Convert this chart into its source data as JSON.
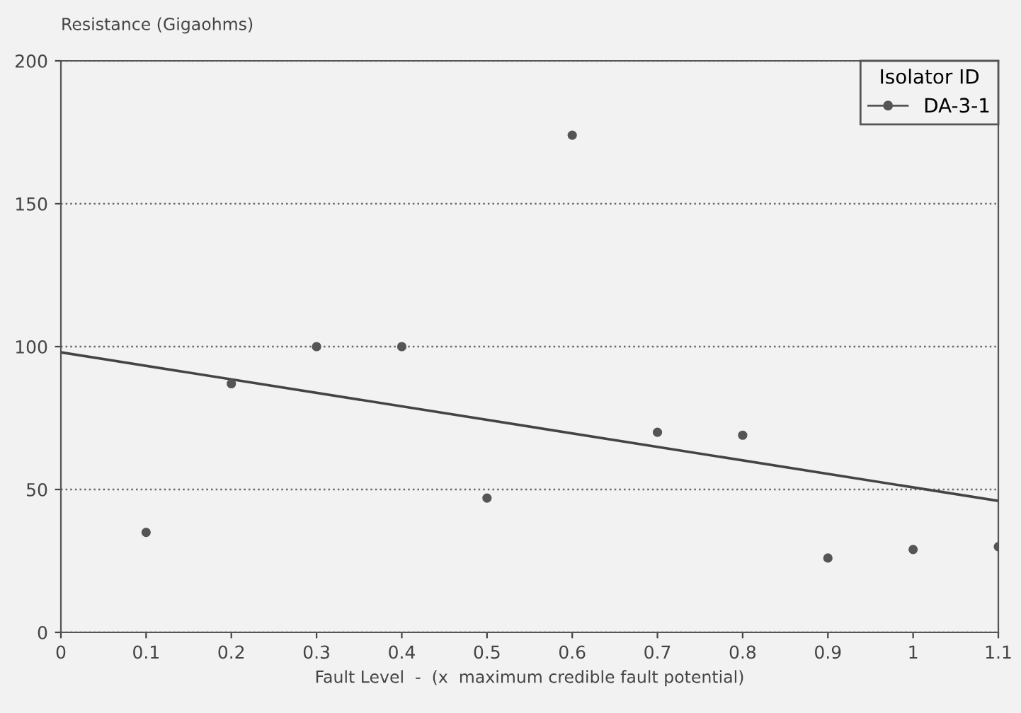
{
  "chart_data": {
    "type": "scatter",
    "ylabel": "Resistance (Gigaohms)",
    "xlabel": "Fault Level  -  (x  maximum credible fault potential)",
    "legend_title": "Isolator ID",
    "legend": "top right",
    "grid": "y",
    "xlim": [
      0,
      1.1
    ],
    "xticks": [
      0,
      0.1,
      0.2,
      0.3,
      0.4,
      0.5,
      0.6,
      0.7,
      0.8,
      0.9,
      1,
      1.1
    ],
    "ylim": [
      0,
      200
    ],
    "yticks": [
      0,
      50,
      100,
      150,
      200
    ],
    "series": [
      {
        "name": "DA-3-1",
        "marker": "circle",
        "color": "#555555",
        "x": [
          0.1,
          0.2,
          0.3,
          0.4,
          0.5,
          0.6,
          0.7,
          0.8,
          0.9,
          1,
          1.1
        ],
        "values": [
          35,
          87,
          100,
          100,
          47,
          174,
          70,
          69,
          26,
          29,
          30
        ]
      },
      {
        "type": "line",
        "color": "#444444",
        "x": [
          0,
          1.1
        ],
        "values": [
          98,
          46
        ]
      }
    ]
  }
}
